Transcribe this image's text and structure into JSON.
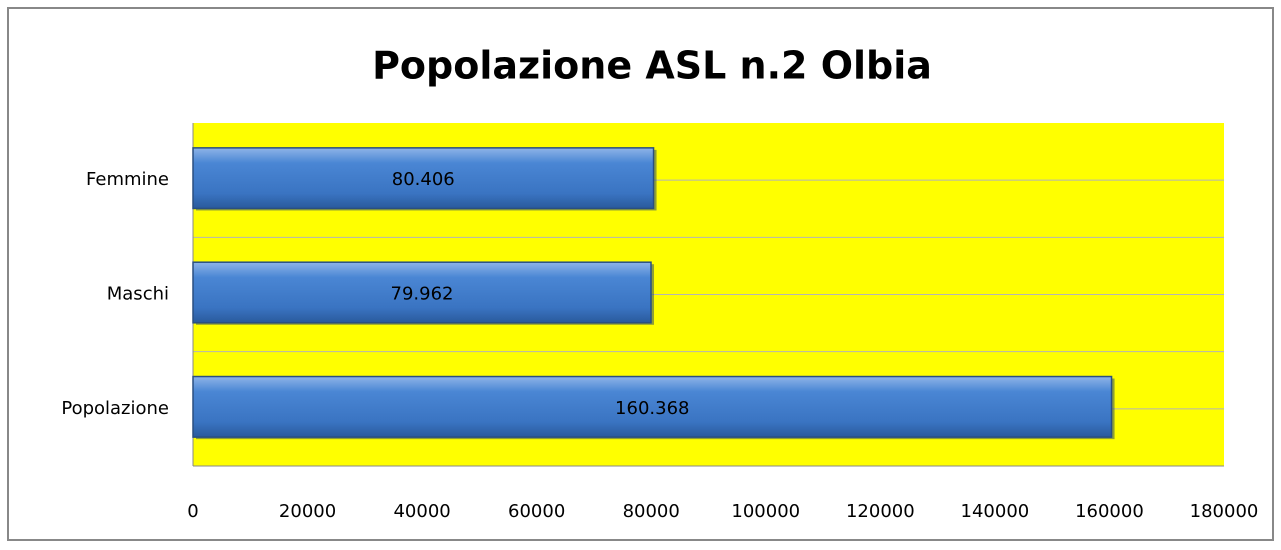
{
  "chart_data": {
    "type": "hbar",
    "title": "Popolazione ASL n.2 Olbia",
    "categories": [
      "Femmine",
      "Maschi",
      "Popolazione"
    ],
    "values": [
      80406,
      79962,
      160368
    ],
    "value_labels": [
      "80.406",
      "79.962",
      "160.368"
    ],
    "color": "#3d7ccc",
    "plot_background": "#ffff00",
    "xlim": [
      0,
      180000
    ],
    "xticks": [
      0,
      20000,
      40000,
      60000,
      80000,
      100000,
      120000,
      140000,
      160000,
      180000
    ]
  }
}
